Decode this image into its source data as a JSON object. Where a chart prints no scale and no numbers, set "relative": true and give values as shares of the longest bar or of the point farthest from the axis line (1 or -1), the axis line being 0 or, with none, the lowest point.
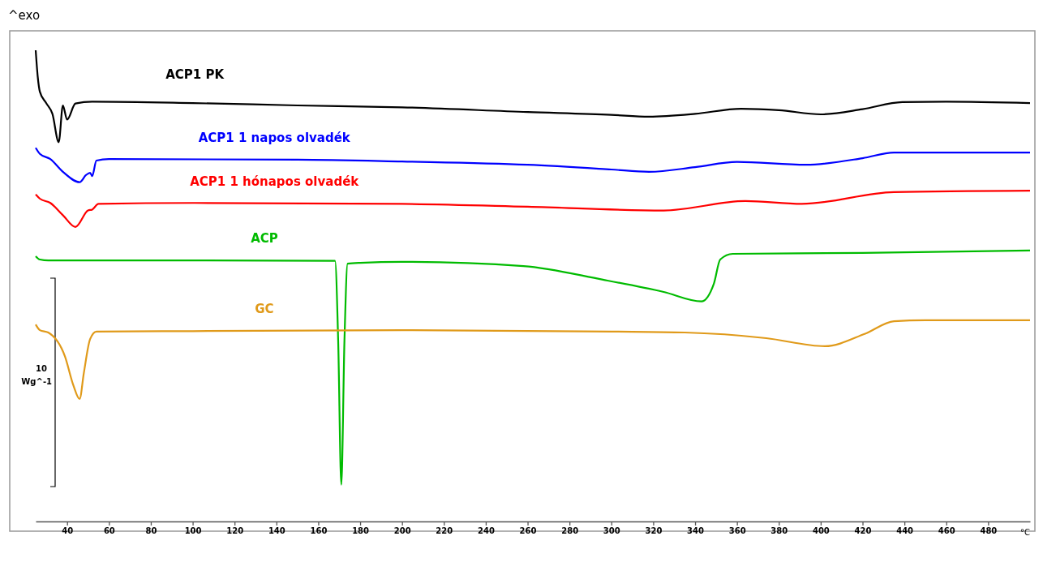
{
  "chart_data": {
    "type": "line",
    "relative": true,
    "xlabel": "°C",
    "xlim": [
      25,
      500
    ],
    "xticks": [
      40,
      60,
      80,
      100,
      120,
      140,
      160,
      180,
      200,
      220,
      240,
      260,
      280,
      300,
      320,
      340,
      360,
      380,
      400,
      420,
      440,
      460,
      480
    ],
    "annotations": [
      "^exo",
      "10",
      "Wg^-1"
    ],
    "series": [
      {
        "name": "ACP1 PK",
        "color": "#000000",
        "x": [
          25,
          26,
          27,
          30,
          33,
          36,
          38,
          40,
          44,
          52,
          100,
          150,
          200,
          260,
          300,
          318,
          340,
          362,
          380,
          400,
          420,
          439,
          460,
          500
        ],
        "values": [
          1.0,
          0.943,
          0.912,
          0.888,
          0.865,
          0.805,
          0.883,
          0.853,
          0.887,
          0.891,
          0.888,
          0.883,
          0.879,
          0.869,
          0.863,
          0.859,
          0.865,
          0.876,
          0.873,
          0.864,
          0.875,
          0.89,
          0.891,
          0.888
        ]
      },
      {
        "name": "ACP1 1 napos olvadék",
        "color": "#0000ff",
        "x": [
          25,
          27,
          32,
          38,
          46,
          49,
          51,
          52,
          54,
          60,
          150,
          200,
          260,
          300,
          318,
          340,
          360,
          393,
          420,
          435,
          500
        ],
        "values": [
          0.793,
          0.78,
          0.769,
          0.742,
          0.72,
          0.735,
          0.74,
          0.733,
          0.766,
          0.769,
          0.768,
          0.764,
          0.757,
          0.747,
          0.742,
          0.752,
          0.763,
          0.757,
          0.771,
          0.783,
          0.783
        ]
      },
      {
        "name": "ACP1 1 hónapos olvadék",
        "color": "#ff0000",
        "x": [
          25,
          27,
          32,
          38,
          44,
          50,
          52,
          55,
          100,
          200,
          260,
          325,
          364,
          391,
          435,
          500
        ],
        "values": [
          0.694,
          0.685,
          0.676,
          0.65,
          0.625,
          0.66,
          0.662,
          0.674,
          0.676,
          0.674,
          0.668,
          0.66,
          0.68,
          0.674,
          0.699,
          0.702
        ]
      },
      {
        "name": "ACP",
        "color": "#00bb00",
        "x": [
          25,
          27,
          31,
          100,
          168,
          169.5,
          171,
          172.5,
          174,
          180,
          200,
          258,
          296,
          325,
          343,
          349,
          352,
          358,
          420,
          500
        ],
        "values": [
          0.563,
          0.556,
          0.554,
          0.554,
          0.553,
          0.384,
          0.078,
          0.384,
          0.547,
          0.549,
          0.551,
          0.542,
          0.513,
          0.487,
          0.467,
          0.505,
          0.556,
          0.568,
          0.57,
          0.575
        ]
      },
      {
        "name": "GC",
        "color": "#e09a1a",
        "x": [
          25,
          27,
          31,
          39,
          43,
          46,
          48,
          51,
          54,
          100,
          200,
          300,
          335,
          374,
          402,
          421,
          435,
          450,
          500
        ],
        "values": [
          0.418,
          0.406,
          0.401,
          0.35,
          0.289,
          0.26,
          0.315,
          0.387,
          0.403,
          0.404,
          0.406,
          0.403,
          0.401,
          0.389,
          0.372,
          0.398,
          0.425,
          0.427,
          0.427
        ]
      }
    ]
  }
}
